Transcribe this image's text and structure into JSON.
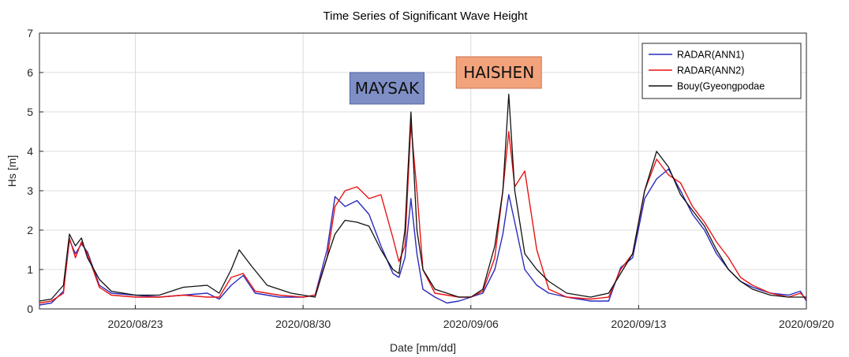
{
  "chart_data": {
    "type": "line",
    "title": "Time Series of Significant Wave Height",
    "xlabel": "Date [mm/dd]",
    "ylabel": "Hs [m]",
    "xlim": [
      "2020-08-19",
      "2020-09-20"
    ],
    "ylim": [
      0,
      7
    ],
    "grid": true,
    "legend_position": "top-right",
    "x_tick_labels": [
      "2020/08/23",
      "2020/08/30",
      "2020/09/06",
      "2020/09/13",
      "2020/09/20"
    ],
    "x_ticks": [
      "2020-08-23",
      "2020-08-30",
      "2020-09-06",
      "2020-09-13",
      "2020-09-20"
    ],
    "y_ticks": [
      0,
      1,
      2,
      3,
      4,
      5,
      6,
      7
    ],
    "annotations": [
      {
        "text": "MAYSAK",
        "x": "2020-09-02T12:00",
        "y": 5.6,
        "fill": "#7f8fc6",
        "border": "#4f5fa0"
      },
      {
        "text": "HAISHEN",
        "x": "2020-09-07T04:00",
        "y": 6.0,
        "fill": "#f3a37c",
        "border": "#c9714a"
      }
    ],
    "series": [
      {
        "name": "RADAR(ANN1)",
        "color": "#2b2bbd",
        "points": [
          [
            "2020-08-19T00:00",
            0.1
          ],
          [
            "2020-08-19T12:00",
            0.15
          ],
          [
            "2020-08-20T00:00",
            0.45
          ],
          [
            "2020-08-20T06:00",
            1.75
          ],
          [
            "2020-08-20T12:00",
            1.4
          ],
          [
            "2020-08-20T18:00",
            1.65
          ],
          [
            "2020-08-21T00:00",
            1.45
          ],
          [
            "2020-08-21T12:00",
            0.6
          ],
          [
            "2020-08-22T00:00",
            0.4
          ],
          [
            "2020-08-23T00:00",
            0.35
          ],
          [
            "2020-08-24T00:00",
            0.3
          ],
          [
            "2020-08-25T00:00",
            0.35
          ],
          [
            "2020-08-26T00:00",
            0.4
          ],
          [
            "2020-08-26T12:00",
            0.25
          ],
          [
            "2020-08-27T00:00",
            0.6
          ],
          [
            "2020-08-27T12:00",
            0.85
          ],
          [
            "2020-08-28T00:00",
            0.4
          ],
          [
            "2020-08-29T00:00",
            0.3
          ],
          [
            "2020-08-30T00:00",
            0.3
          ],
          [
            "2020-08-30T12:00",
            0.35
          ],
          [
            "2020-08-31T00:00",
            1.5
          ],
          [
            "2020-08-31T08:00",
            2.85
          ],
          [
            "2020-08-31T18:00",
            2.6
          ],
          [
            "2020-09-01T06:00",
            2.75
          ],
          [
            "2020-09-01T18:00",
            2.4
          ],
          [
            "2020-09-02T06:00",
            1.6
          ],
          [
            "2020-09-02T18:00",
            0.9
          ],
          [
            "2020-09-03T00:00",
            0.8
          ],
          [
            "2020-09-03T06:00",
            1.3
          ],
          [
            "2020-09-03T12:00",
            2.8
          ],
          [
            "2020-09-03T18:00",
            1.4
          ],
          [
            "2020-09-04T00:00",
            0.5
          ],
          [
            "2020-09-04T12:00",
            0.3
          ],
          [
            "2020-09-05T00:00",
            0.15
          ],
          [
            "2020-09-05T12:00",
            0.2
          ],
          [
            "2020-09-06T00:00",
            0.3
          ],
          [
            "2020-09-06T12:00",
            0.4
          ],
          [
            "2020-09-07T00:00",
            1.0
          ],
          [
            "2020-09-07T08:00",
            1.9
          ],
          [
            "2020-09-07T14:00",
            2.9
          ],
          [
            "2020-09-07T20:00",
            2.2
          ],
          [
            "2020-09-08T06:00",
            1.0
          ],
          [
            "2020-09-08T18:00",
            0.6
          ],
          [
            "2020-09-09T06:00",
            0.4
          ],
          [
            "2020-09-10T00:00",
            0.3
          ],
          [
            "2020-09-11T00:00",
            0.2
          ],
          [
            "2020-09-11T18:00",
            0.2
          ],
          [
            "2020-09-12T06:00",
            1.05
          ],
          [
            "2020-09-12T18:00",
            1.3
          ],
          [
            "2020-09-13T06:00",
            2.8
          ],
          [
            "2020-09-13T18:00",
            3.3
          ],
          [
            "2020-09-14T06:00",
            3.55
          ],
          [
            "2020-09-14T18:00",
            3.0
          ],
          [
            "2020-09-15T06:00",
            2.4
          ],
          [
            "2020-09-15T18:00",
            2.0
          ],
          [
            "2020-09-16T06:00",
            1.4
          ],
          [
            "2020-09-16T18:00",
            1.0
          ],
          [
            "2020-09-17T06:00",
            0.7
          ],
          [
            "2020-09-17T18:00",
            0.55
          ],
          [
            "2020-09-18T12:00",
            0.4
          ],
          [
            "2020-09-19T06:00",
            0.35
          ],
          [
            "2020-09-19T18:00",
            0.45
          ],
          [
            "2020-09-20T00:00",
            0.2
          ]
        ]
      },
      {
        "name": "RADAR(ANN2)",
        "color": "#e81414",
        "points": [
          [
            "2020-08-19T00:00",
            0.15
          ],
          [
            "2020-08-19T12:00",
            0.2
          ],
          [
            "2020-08-20T00:00",
            0.4
          ],
          [
            "2020-08-20T06:00",
            1.8
          ],
          [
            "2020-08-20T12:00",
            1.3
          ],
          [
            "2020-08-20T18:00",
            1.7
          ],
          [
            "2020-08-21T00:00",
            1.4
          ],
          [
            "2020-08-21T12:00",
            0.55
          ],
          [
            "2020-08-22T00:00",
            0.35
          ],
          [
            "2020-08-23T00:00",
            0.3
          ],
          [
            "2020-08-24T00:00",
            0.3
          ],
          [
            "2020-08-25T00:00",
            0.35
          ],
          [
            "2020-08-26T00:00",
            0.3
          ],
          [
            "2020-08-26T12:00",
            0.3
          ],
          [
            "2020-08-27T00:00",
            0.8
          ],
          [
            "2020-08-27T12:00",
            0.9
          ],
          [
            "2020-08-28T00:00",
            0.45
          ],
          [
            "2020-08-29T00:00",
            0.35
          ],
          [
            "2020-08-30T00:00",
            0.3
          ],
          [
            "2020-08-30T12:00",
            0.35
          ],
          [
            "2020-08-31T00:00",
            1.3
          ],
          [
            "2020-08-31T08:00",
            2.6
          ],
          [
            "2020-08-31T18:00",
            3.0
          ],
          [
            "2020-09-01T06:00",
            3.1
          ],
          [
            "2020-09-01T18:00",
            2.8
          ],
          [
            "2020-09-02T06:00",
            2.9
          ],
          [
            "2020-09-02T18:00",
            1.8
          ],
          [
            "2020-09-03T00:00",
            1.2
          ],
          [
            "2020-09-03T06:00",
            1.6
          ],
          [
            "2020-09-03T12:00",
            4.7
          ],
          [
            "2020-09-03T18:00",
            3.0
          ],
          [
            "2020-09-04T00:00",
            1.0
          ],
          [
            "2020-09-04T12:00",
            0.4
          ],
          [
            "2020-09-05T00:00",
            0.35
          ],
          [
            "2020-09-05T12:00",
            0.3
          ],
          [
            "2020-09-06T00:00",
            0.3
          ],
          [
            "2020-09-06T12:00",
            0.45
          ],
          [
            "2020-09-07T00:00",
            1.3
          ],
          [
            "2020-09-07T08:00",
            3.0
          ],
          [
            "2020-09-07T14:00",
            4.5
          ],
          [
            "2020-09-07T20:00",
            3.1
          ],
          [
            "2020-09-08T06:00",
            3.5
          ],
          [
            "2020-09-08T18:00",
            1.5
          ],
          [
            "2020-09-09T06:00",
            0.5
          ],
          [
            "2020-09-10T00:00",
            0.3
          ],
          [
            "2020-09-11T00:00",
            0.25
          ],
          [
            "2020-09-11T18:00",
            0.3
          ],
          [
            "2020-09-12T06:00",
            1.0
          ],
          [
            "2020-09-12T18:00",
            1.4
          ],
          [
            "2020-09-13T06:00",
            3.0
          ],
          [
            "2020-09-13T18:00",
            3.8
          ],
          [
            "2020-09-14T06:00",
            3.4
          ],
          [
            "2020-09-14T18:00",
            3.2
          ],
          [
            "2020-09-15T06:00",
            2.6
          ],
          [
            "2020-09-15T18:00",
            2.2
          ],
          [
            "2020-09-16T06:00",
            1.7
          ],
          [
            "2020-09-16T18:00",
            1.3
          ],
          [
            "2020-09-17T06:00",
            0.8
          ],
          [
            "2020-09-17T18:00",
            0.6
          ],
          [
            "2020-09-18T12:00",
            0.4
          ],
          [
            "2020-09-19T06:00",
            0.3
          ],
          [
            "2020-09-19T18:00",
            0.4
          ],
          [
            "2020-09-20T00:00",
            0.25
          ]
        ]
      },
      {
        "name": "Bouy(Gyeongpodae",
        "color": "#111111",
        "points": [
          [
            "2020-08-19T00:00",
            0.2
          ],
          [
            "2020-08-19T12:00",
            0.25
          ],
          [
            "2020-08-20T00:00",
            0.6
          ],
          [
            "2020-08-20T06:00",
            1.9
          ],
          [
            "2020-08-20T12:00",
            1.6
          ],
          [
            "2020-08-20T18:00",
            1.8
          ],
          [
            "2020-08-21T00:00",
            1.3
          ],
          [
            "2020-08-21T12:00",
            0.75
          ],
          [
            "2020-08-22T00:00",
            0.45
          ],
          [
            "2020-08-23T00:00",
            0.35
          ],
          [
            "2020-08-24T00:00",
            0.35
          ],
          [
            "2020-08-25T00:00",
            0.55
          ],
          [
            "2020-08-26T00:00",
            0.6
          ],
          [
            "2020-08-26T12:00",
            0.4
          ],
          [
            "2020-08-27T00:00",
            1.0
          ],
          [
            "2020-08-27T08:00",
            1.5
          ],
          [
            "2020-08-27T20:00",
            1.1
          ],
          [
            "2020-08-28T12:00",
            0.6
          ],
          [
            "2020-08-29T12:00",
            0.4
          ],
          [
            "2020-08-30T12:00",
            0.3
          ],
          [
            "2020-08-31T00:00",
            1.3
          ],
          [
            "2020-08-31T08:00",
            1.9
          ],
          [
            "2020-08-31T18:00",
            2.25
          ],
          [
            "2020-09-01T06:00",
            2.2
          ],
          [
            "2020-09-01T18:00",
            2.1
          ],
          [
            "2020-09-02T06:00",
            1.5
          ],
          [
            "2020-09-02T18:00",
            1.0
          ],
          [
            "2020-09-03T00:00",
            0.9
          ],
          [
            "2020-09-03T06:00",
            2.0
          ],
          [
            "2020-09-03T12:00",
            5.0
          ],
          [
            "2020-09-03T18:00",
            2.0
          ],
          [
            "2020-09-04T00:00",
            1.0
          ],
          [
            "2020-09-04T12:00",
            0.5
          ],
          [
            "2020-09-05T00:00",
            0.4
          ],
          [
            "2020-09-05T12:00",
            0.3
          ],
          [
            "2020-09-06T00:00",
            0.3
          ],
          [
            "2020-09-06T12:00",
            0.5
          ],
          [
            "2020-09-07T00:00",
            1.6
          ],
          [
            "2020-09-07T08:00",
            3.0
          ],
          [
            "2020-09-07T14:00",
            5.45
          ],
          [
            "2020-09-07T20:00",
            3.0
          ],
          [
            "2020-09-08T06:00",
            1.4
          ],
          [
            "2020-09-08T18:00",
            1.0
          ],
          [
            "2020-09-09T06:00",
            0.7
          ],
          [
            "2020-09-10T00:00",
            0.4
          ],
          [
            "2020-09-11T00:00",
            0.3
          ],
          [
            "2020-09-11T18:00",
            0.4
          ],
          [
            "2020-09-12T06:00",
            0.9
          ],
          [
            "2020-09-12T18:00",
            1.4
          ],
          [
            "2020-09-13T06:00",
            3.0
          ],
          [
            "2020-09-13T18:00",
            4.0
          ],
          [
            "2020-09-14T06:00",
            3.6
          ],
          [
            "2020-09-14T18:00",
            2.9
          ],
          [
            "2020-09-15T06:00",
            2.5
          ],
          [
            "2020-09-15T18:00",
            2.1
          ],
          [
            "2020-09-16T06:00",
            1.5
          ],
          [
            "2020-09-16T18:00",
            1.0
          ],
          [
            "2020-09-17T06:00",
            0.7
          ],
          [
            "2020-09-17T18:00",
            0.5
          ],
          [
            "2020-09-18T12:00",
            0.35
          ],
          [
            "2020-09-19T06:00",
            0.3
          ],
          [
            "2020-09-19T18:00",
            0.3
          ],
          [
            "2020-09-20T00:00",
            0.3
          ]
        ]
      }
    ]
  }
}
